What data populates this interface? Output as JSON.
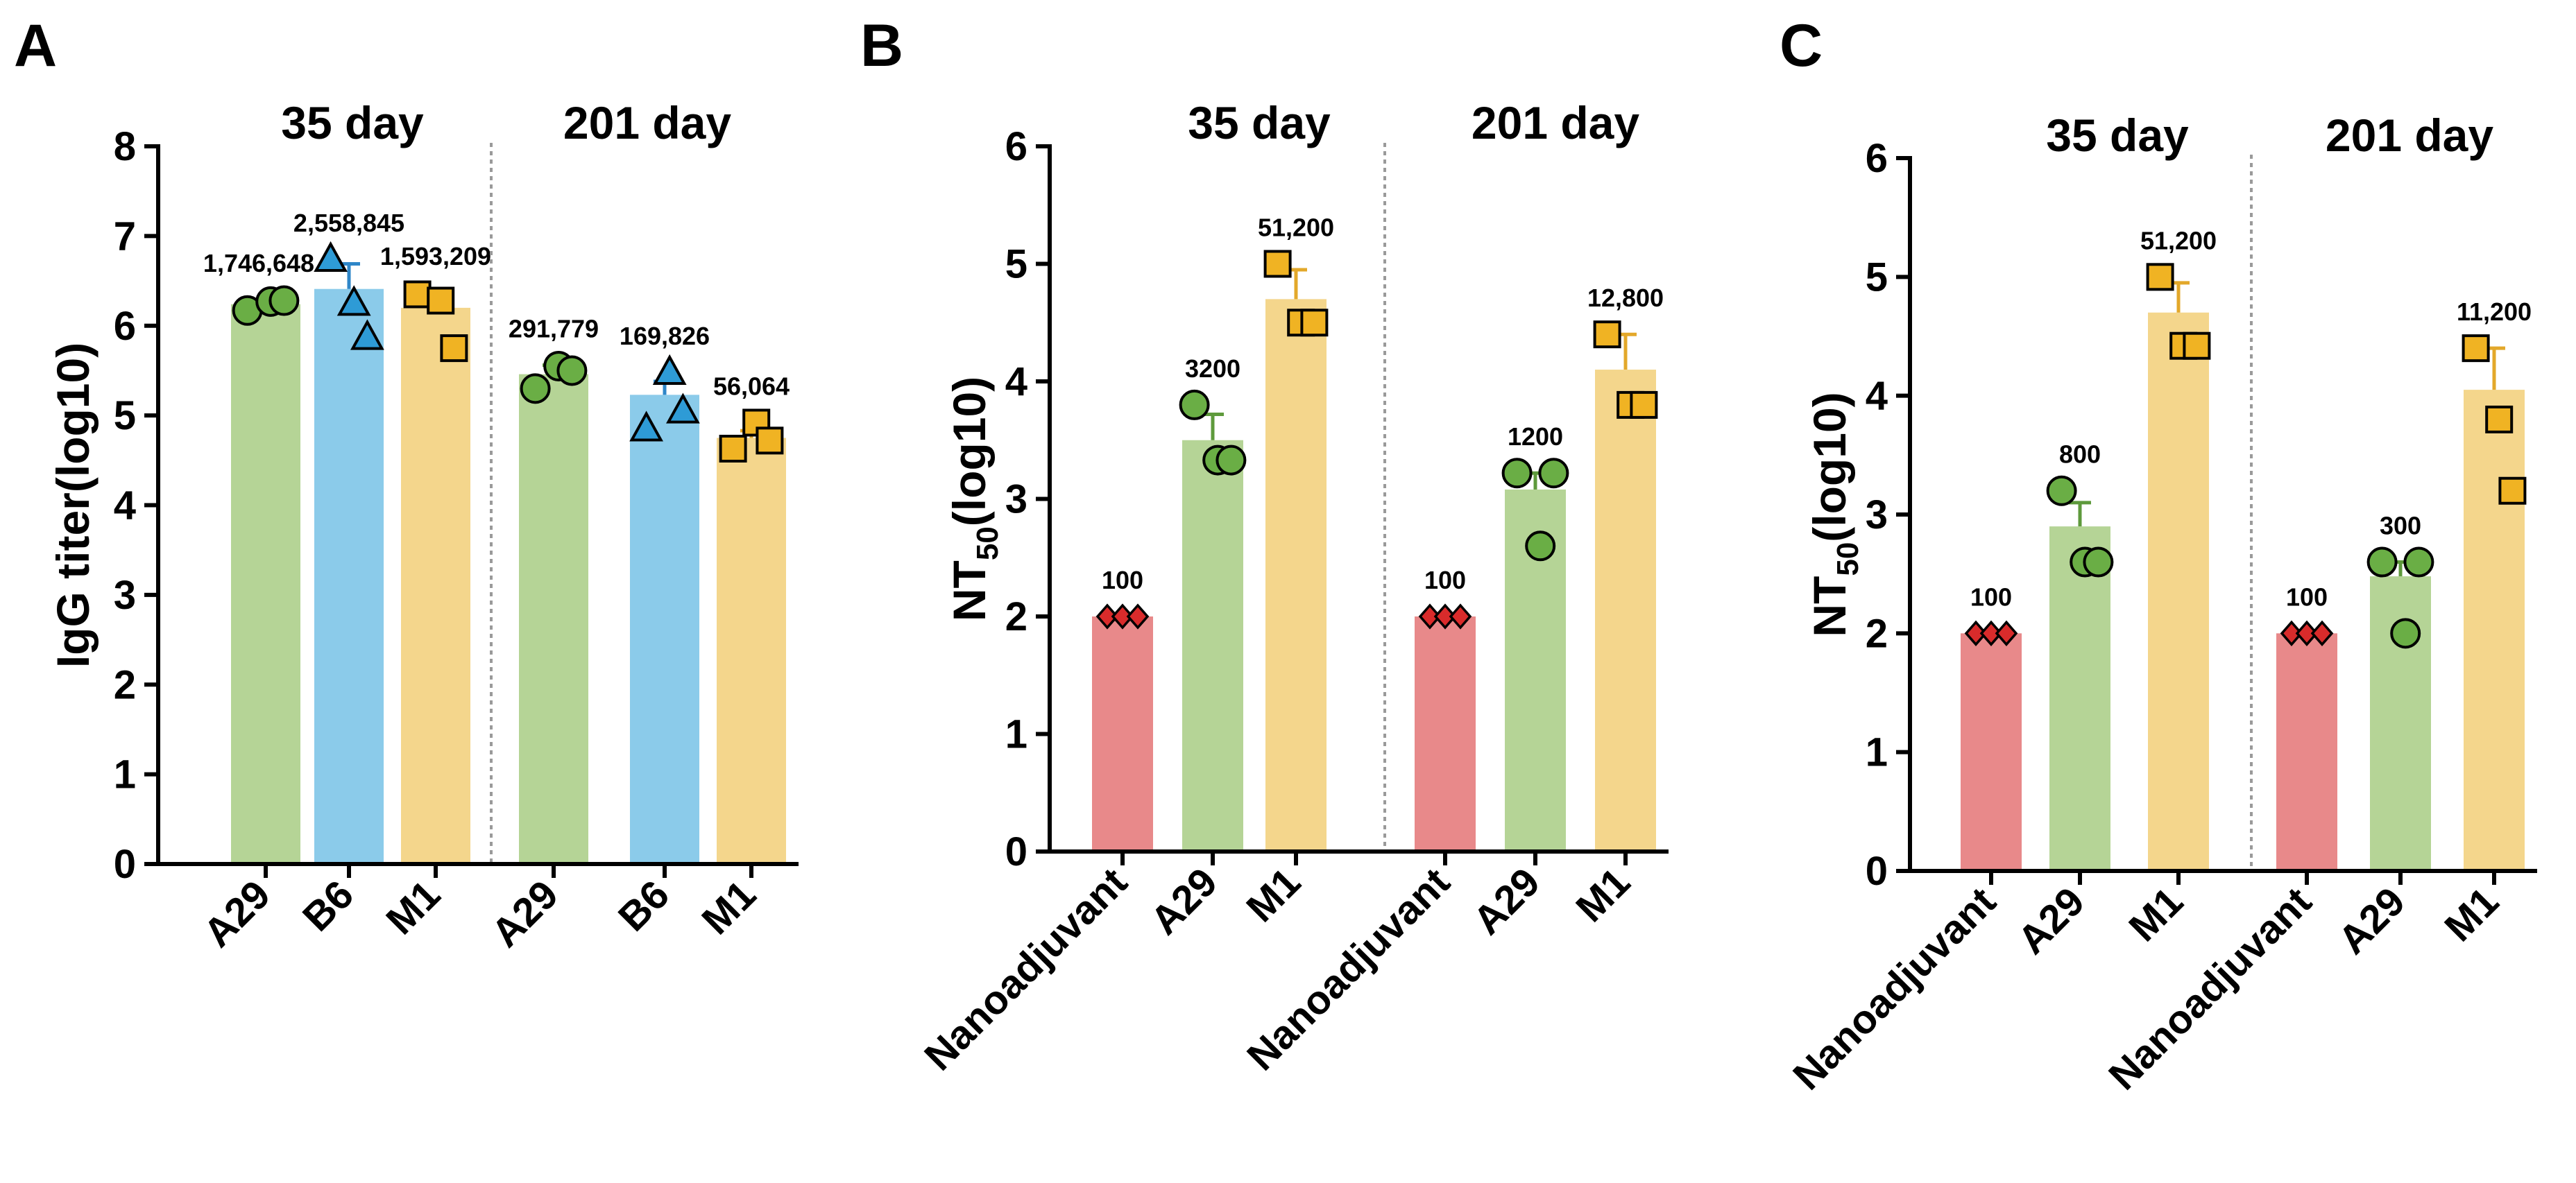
{
  "figure": {
    "colors": {
      "Nanoadjuvant": "#E8898A",
      "A29": "#B5D496",
      "B6": "#8BCBEA",
      "M1": "#F4D68C",
      "marker_Nanoadjuvant": "#D92B2B",
      "marker_A29": "#6AAE45",
      "marker_B6": "#2E9BD6",
      "marker_M1": "#F0B323",
      "errorbar_A29": "#5E9A3C",
      "errorbar_B6": "#2E86C8",
      "errorbar_M1": "#E3A82A"
    }
  },
  "chart_data": [
    {
      "panel": "A",
      "type": "bar",
      "ylabel": "IgG titer(log10)",
      "ylim": [
        0,
        8
      ],
      "yticks": [
        "0",
        "1",
        "2",
        "3",
        "4",
        "5",
        "6",
        "7",
        "8"
      ],
      "groups": [
        {
          "label": "35 day",
          "bars": [
            {
              "category": "A29",
              "mean": 6.24,
              "err": 0.05,
              "points": [
                6.17,
                6.27,
                6.28
              ],
              "value_label": "1,746,648",
              "marker": "circle"
            },
            {
              "category": "B6",
              "mean": 6.41,
              "err": 0.28,
              "points": [
                6.74,
                6.25,
                5.87
              ],
              "value_label": "2,558,845",
              "marker": "triangle"
            },
            {
              "category": "M1",
              "mean": 6.2,
              "err": 0.17,
              "points": [
                6.35,
                6.28,
                5.75
              ],
              "value_label": "1,593,209",
              "marker": "square"
            }
          ]
        },
        {
          "label": "201 day",
          "bars": [
            {
              "category": "A29",
              "mean": 5.46,
              "err": 0.1,
              "points": [
                5.3,
                5.55,
                5.5
              ],
              "value_label": "291,779",
              "marker": "circle"
            },
            {
              "category": "B6",
              "mean": 5.23,
              "err": 0.15,
              "points": [
                4.85,
                5.48,
                5.05
              ],
              "value_label": "169,826",
              "marker": "triangle"
            },
            {
              "category": "M1",
              "mean": 4.75,
              "err": 0.08,
              "points": [
                4.63,
                4.92,
                4.72
              ],
              "value_label": "56,064",
              "marker": "square"
            }
          ]
        }
      ]
    },
    {
      "panel": "B",
      "type": "bar",
      "ylabel": "NT50(log10)",
      "ylabel_main": "NT",
      "ylabel_sub": "50",
      "ylabel_tail": "(log10)",
      "ylim": [
        0,
        6
      ],
      "yticks": [
        "0",
        "1",
        "2",
        "3",
        "4",
        "5",
        "6"
      ],
      "groups": [
        {
          "label": "35 day",
          "bars": [
            {
              "category": "Nanoadjuvant",
              "mean": 2.0,
              "err": 0,
              "points": [
                2.0,
                2.0,
                2.0
              ],
              "value_label": "100",
              "marker": "diamond"
            },
            {
              "category": "A29",
              "mean": 3.5,
              "err": 0.22,
              "points": [
                3.8,
                3.33,
                3.33
              ],
              "value_label": "3200",
              "marker": "circle"
            },
            {
              "category": "M1",
              "mean": 4.7,
              "err": 0.25,
              "points": [
                5.0,
                4.5,
                4.5
              ],
              "value_label": "51,200",
              "marker": "square"
            }
          ]
        },
        {
          "label": "201 day",
          "bars": [
            {
              "category": "Nanoadjuvant",
              "mean": 2.0,
              "err": 0,
              "points": [
                2.0,
                2.0,
                2.0
              ],
              "value_label": "100",
              "marker": "diamond"
            },
            {
              "category": "A29",
              "mean": 3.08,
              "err": 0.14,
              "points": [
                3.22,
                2.6,
                3.22
              ],
              "value_label": "1200",
              "marker": "circle"
            },
            {
              "category": "M1",
              "mean": 4.1,
              "err": 0.3,
              "points": [
                4.4,
                3.8,
                3.8
              ],
              "value_label": "12,800",
              "marker": "square"
            }
          ]
        }
      ]
    },
    {
      "panel": "C",
      "type": "bar",
      "ylabel": "NT50(log10)",
      "ylabel_main": "NT",
      "ylabel_sub": "50",
      "ylabel_tail": "(log10)",
      "ylim": [
        0,
        6
      ],
      "yticks": [
        "0",
        "1",
        "2",
        "3",
        "4",
        "5",
        "6"
      ],
      "groups": [
        {
          "label": "35 day",
          "bars": [
            {
              "category": "Nanoadjuvant",
              "mean": 2.0,
              "err": 0,
              "points": [
                2.0,
                2.0,
                2.0
              ],
              "value_label": "100",
              "marker": "diamond"
            },
            {
              "category": "A29",
              "mean": 2.9,
              "err": 0.2,
              "points": [
                3.2,
                2.6,
                2.6
              ],
              "value_label": "800",
              "marker": "circle"
            },
            {
              "category": "M1",
              "mean": 4.7,
              "err": 0.25,
              "points": [
                5.0,
                4.42,
                4.42
              ],
              "value_label": "51,200",
              "marker": "square"
            }
          ]
        },
        {
          "label": "201 day",
          "bars": [
            {
              "category": "Nanoadjuvant",
              "mean": 2.0,
              "err": 0,
              "points": [
                2.0,
                2.0,
                2.0
              ],
              "value_label": "100",
              "marker": "diamond"
            },
            {
              "category": "A29",
              "mean": 2.48,
              "err": 0.12,
              "points": [
                2.6,
                2.0,
                2.6
              ],
              "value_label": "300",
              "marker": "circle"
            },
            {
              "category": "M1",
              "mean": 4.05,
              "err": 0.35,
              "points": [
                4.4,
                3.8,
                3.2
              ],
              "value_label": "11,200",
              "marker": "square"
            }
          ]
        }
      ]
    }
  ]
}
